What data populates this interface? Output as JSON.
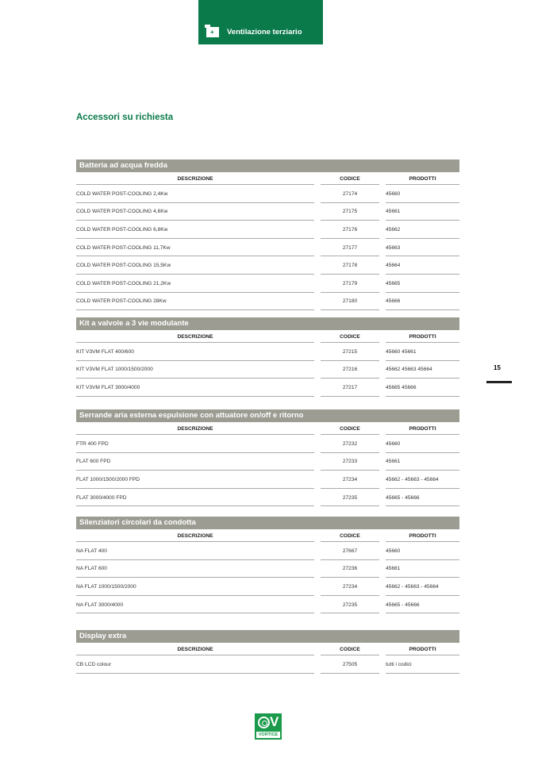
{
  "header": {
    "tab_label": "Ventilazione terziario",
    "icon": "building-plus-icon"
  },
  "title": "Accessori su richiesta",
  "columns": {
    "desc": "DESCRIZIONE",
    "code": "CODICE",
    "products": "PRODOTTI"
  },
  "sections": [
    {
      "title": "Batteria ad acqua fredda",
      "rows": [
        [
          "COLD WATER POST-COOLING 2,4Kw",
          "27174",
          "45660"
        ],
        [
          "COLD WATER POST-COOLING 4,6Kw",
          "27175",
          "45661"
        ],
        [
          "COLD WATER POST-COOLING 6,8Kw",
          "27176",
          "45662"
        ],
        [
          "COLD WATER POST-COOLING 11,7Kw",
          "27177",
          "45663"
        ],
        [
          "COLD WATER POST-COOLING 15,5Kw",
          "27178",
          "45664"
        ],
        [
          "COLD WATER POST-COOLING 21,2Kw",
          "27179",
          "45665"
        ],
        [
          "COLD WATER POST-COOLING 28Kw",
          "27180",
          "45666"
        ]
      ]
    },
    {
      "title": "Kit a valvole a 3 vie modulante",
      "rows": [
        [
          "KIT V3VM FLAT 400/600",
          "27215",
          "45660  45661"
        ],
        [
          "KIT V3VM FLAT 1000/1500/2000",
          "27216",
          "45662  45663  45664"
        ],
        [
          "KIT V3VM FLAT 3000/4000",
          "27217",
          "45665  45666"
        ]
      ]
    },
    {
      "title": "Serrande aria esterna espulsione con attuatore on/off e ritorno",
      "rows": [
        [
          "FTR 400 FPD",
          "27232",
          "45660"
        ],
        [
          "FLAT 600 FPD",
          "27233",
          "45661"
        ],
        [
          "FLAT 1000/1500/2000 FPD",
          "27234",
          "45662 - 45663 - 45664"
        ],
        [
          "FLAT 3000/4000 FPD",
          "27235",
          "45665 - 45666"
        ]
      ]
    },
    {
      "title": "Silenziatori circolari da condotta",
      "rows": [
        [
          "NA FLAT 400",
          "27667",
          "45660"
        ],
        [
          "NA FLAT 600",
          "27236",
          "45661"
        ],
        [
          "NA FLAT 1000/1500/2000",
          "27234",
          "45662 - 45663 - 45664"
        ],
        [
          "NA FLAT 3000/4000",
          "27235",
          "45665 - 45666"
        ]
      ]
    },
    {
      "title": "Display extra",
      "rows": [
        [
          "CB LCD colour",
          "27505",
          "tutti i codici"
        ]
      ]
    }
  ],
  "page_number": "15",
  "logo_text": "VORTICE"
}
